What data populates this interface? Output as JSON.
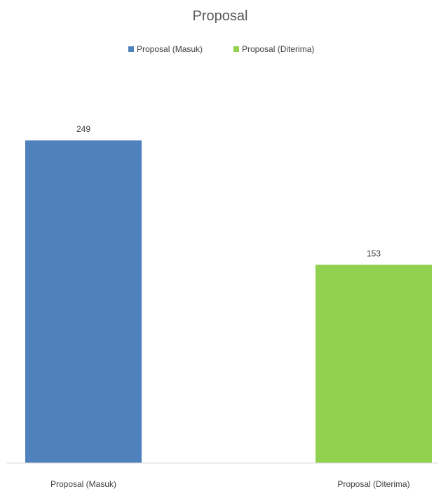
{
  "chart_data": {
    "type": "bar",
    "title": "Proposal",
    "categories": [
      "Proposal (Masuk)",
      "Proposal (Diterima)"
    ],
    "values": [
      249,
      153
    ],
    "colors": [
      "#4f81bd",
      "#92d050"
    ],
    "legend": {
      "placement": "top-center",
      "entries": [
        "Proposal (Masuk)",
        "Proposal (Diterima)"
      ]
    },
    "data_labels": [
      "249",
      "153"
    ],
    "ylim": [
      0,
      300
    ],
    "grid": false,
    "xlabel": "",
    "ylabel": ""
  }
}
